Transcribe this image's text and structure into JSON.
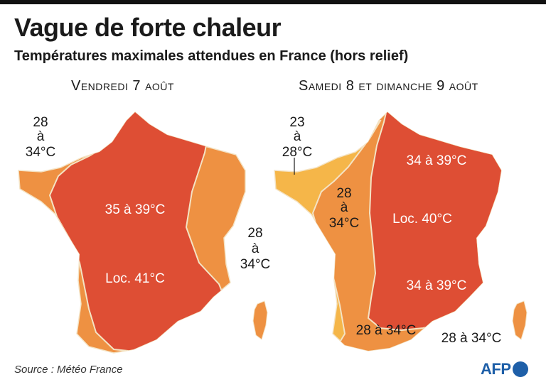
{
  "header": {
    "title": "Vague de forte chaleur",
    "subtitle": "Températures maximales attendues en France (hors relief)"
  },
  "maps": [
    {
      "heading": "Vendredi 7 août",
      "labels": {
        "northwest": [
          "28",
          "à",
          "34°C"
        ],
        "center": "35 à 39°C",
        "southwest": "Loc. 41°C",
        "east": [
          "28",
          "à",
          "34°C"
        ]
      }
    },
    {
      "heading": "Samedi 8 et dimanche 9 août",
      "labels": {
        "northwest": [
          "23",
          "à",
          "28°C"
        ],
        "west": [
          "28",
          "à",
          "34°C"
        ],
        "northeast": "34 à 39°C",
        "center": "Loc. 40°C",
        "southeast": "34 à 39°C",
        "south": "28 à 34°C",
        "corsica": "28 à 34°C"
      }
    }
  ],
  "colors": {
    "hot_red": "#de4e34",
    "warm_orange": "#ee9142",
    "mild_yellow": "#f5b649",
    "zone_border": "#f4e3c4"
  },
  "footer": {
    "source": "Source : Météo France",
    "logo": "AFP"
  }
}
